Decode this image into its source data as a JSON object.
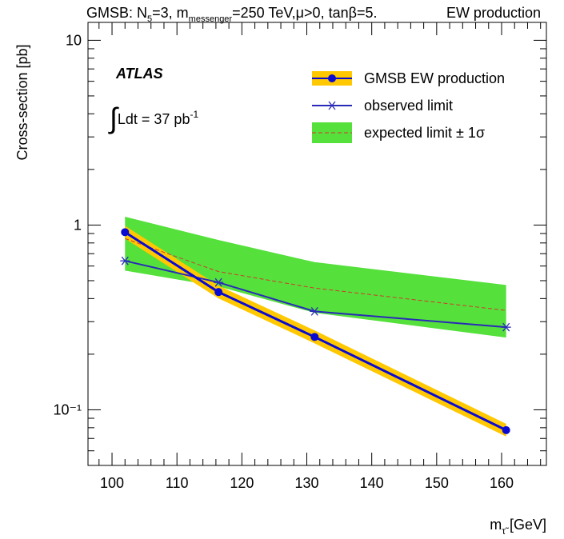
{
  "chart_data": {
    "type": "line",
    "title": [
      "GMSB: N",
      "5",
      "=3, m",
      "messenger",
      "=250 TeV,μ>0, tanβ=5."
    ],
    "title_right": "EW production",
    "experiment": "ATLAS",
    "lumi": [
      "∫",
      "Ldt = 37 pb",
      "-1"
    ],
    "xlabel": [
      "m",
      "τ̃",
      " [GeV]"
    ],
    "ylabel": "Cross-section [pb]",
    "log_y": true,
    "x": [
      102,
      116.4,
      131.2,
      160.7
    ],
    "series": [
      {
        "name": "GMSB EW production",
        "color": "#0a0ad0",
        "band_color": "#ffc800",
        "marker": "circle",
        "values": [
          0.915,
          0.434,
          0.248,
          0.0776
        ],
        "lower": [
          0.845,
          0.401,
          0.229,
          0.0717
        ],
        "upper": [
          0.991,
          0.47,
          0.269,
          0.084
        ]
      },
      {
        "name": "observed limit",
        "color": "#2a2ab8",
        "marker": "star",
        "values": [
          0.64,
          0.489,
          0.341,
          0.28
        ]
      },
      {
        "name": "expected limit ± 1σ",
        "color": "#d03a2a",
        "band_color": "#55e03c",
        "dashed": true,
        "values": [
          0.845,
          0.56,
          0.456,
          0.345
        ],
        "lower": [
          0.567,
          0.465,
          0.335,
          0.246
        ],
        "upper": [
          1.11,
          0.83,
          0.63,
          0.474
        ]
      }
    ],
    "xlim": [
      96.3,
      166.9
    ],
    "xticks": [
      100,
      110,
      120,
      130,
      140,
      150,
      160
    ],
    "xticks_minor": [
      98,
      102,
      104,
      106,
      108,
      112,
      114,
      116,
      118,
      122,
      124,
      126,
      128,
      132,
      134,
      136,
      138,
      142,
      144,
      146,
      148,
      152,
      154,
      156,
      158,
      162,
      164,
      166
    ],
    "ylim": [
      0.05,
      12.5
    ],
    "yticks": [
      {
        "value": 0.1,
        "label": "10⁻¹"
      },
      1,
      10
    ],
    "yticks_minor": [
      0.06,
      0.07,
      0.08,
      0.09,
      0.2,
      0.3,
      0.4,
      0.5,
      0.6,
      0.7,
      0.8,
      0.9,
      2,
      3,
      4,
      5,
      6,
      7,
      8,
      9
    ],
    "legend": "upper right"
  }
}
